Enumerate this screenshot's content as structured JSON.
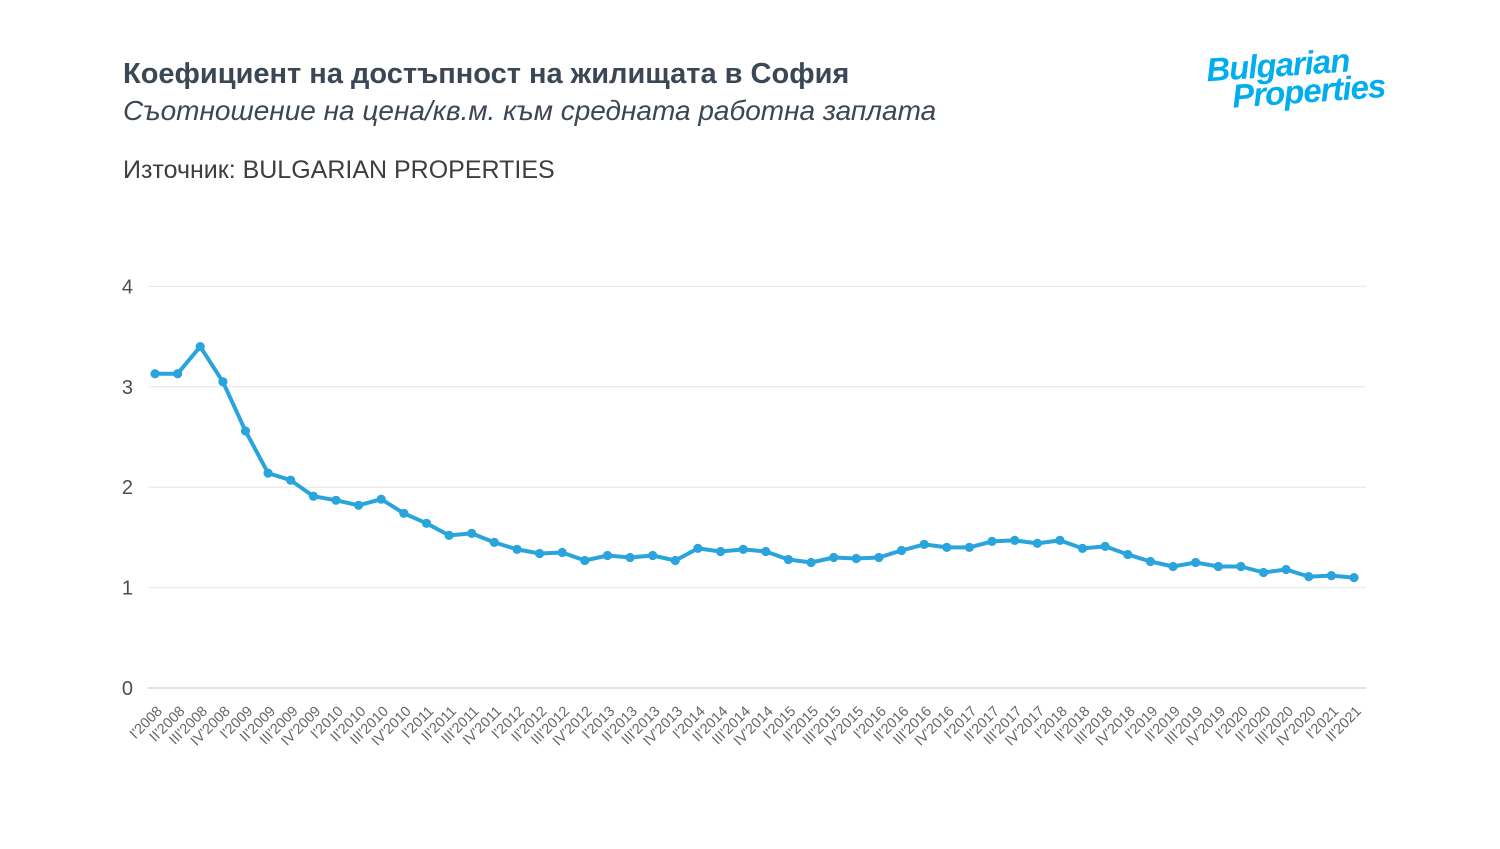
{
  "header": {
    "title": "Коефициент на достъпност на жилищата в София",
    "subtitle": "Съотношение на цена/кв.м. към средната работна заплата",
    "source": "Източник: BULGARIAN PROPERTIES"
  },
  "logo": {
    "line1": "Bulgarian",
    "line2": "Properties",
    "color": "#00aeef"
  },
  "chart_data": {
    "type": "line",
    "title": "Коефициент на достъпност на жилищата в София",
    "xlabel": "",
    "ylabel": "",
    "ylim": [
      0,
      4
    ],
    "yticks": [
      0,
      1,
      2,
      3,
      4
    ],
    "grid": true,
    "legend": "none",
    "line_color": "#2aa4dd",
    "marker": "circle",
    "marker_color": "#2aa4dd",
    "grid_color": "#e6e6e6",
    "axis_line_color": "#d9d9d9",
    "categories": [
      "I'2008",
      "II'2008",
      "III'2008",
      "IV'2008",
      "I'2009",
      "II'2009",
      "III'2009",
      "IV'2009",
      "I'2010",
      "II'2010",
      "III'2010",
      "IV'2010",
      "I'2011",
      "II'2011",
      "III'2011",
      "IV'2011",
      "I'2012",
      "II'2012",
      "III'2012",
      "IV'2012",
      "I'2013",
      "II'2013",
      "III'2013",
      "IV'2013",
      "I'2014",
      "II'2014",
      "III'2014",
      "IV'2014",
      "I'2015",
      "II'2015",
      "III'2015",
      "IV'2015",
      "I'2016",
      "II'2016",
      "III'2016",
      "IV'2016",
      "I'2017",
      "II'2017",
      "III'2017",
      "IV'2017",
      "I'2018",
      "II'2018",
      "III'2018",
      "IV'2018",
      "I'2019",
      "II'2019",
      "III'2019",
      "IV'2019",
      "I'2020",
      "II'2020",
      "III'2020",
      "IV'2020",
      "I'2021",
      "II'2021"
    ],
    "values": [
      3.13,
      3.13,
      3.4,
      3.05,
      2.56,
      2.14,
      2.07,
      1.91,
      1.87,
      1.82,
      1.88,
      1.74,
      1.64,
      1.52,
      1.54,
      1.45,
      1.38,
      1.34,
      1.35,
      1.27,
      1.32,
      1.3,
      1.32,
      1.27,
      1.39,
      1.36,
      1.38,
      1.36,
      1.28,
      1.25,
      1.3,
      1.29,
      1.3,
      1.37,
      1.43,
      1.4,
      1.4,
      1.46,
      1.47,
      1.44,
      1.47,
      1.39,
      1.41,
      1.33,
      1.26,
      1.21,
      1.25,
      1.21,
      1.21,
      1.15,
      1.18,
      1.11,
      1.12,
      1.1
    ]
  }
}
